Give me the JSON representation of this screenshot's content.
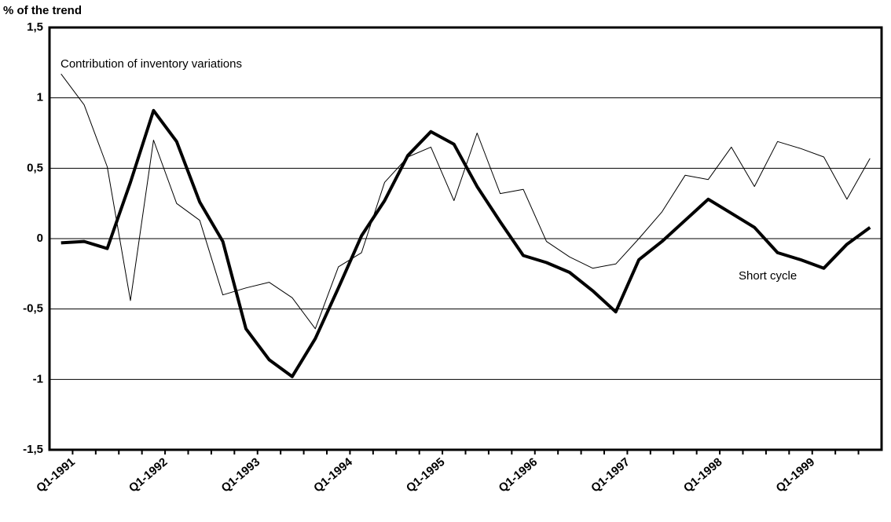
{
  "chart_data": {
    "type": "line",
    "y_label": "% of the trend",
    "annotations": [
      "Contribution of inventory variations",
      "Short cycle"
    ],
    "categories": [
      "Q1-1991",
      null,
      null,
      null,
      "Q1-1992",
      null,
      null,
      null,
      "Q1-1993",
      null,
      null,
      null,
      "Q1-1994",
      null,
      null,
      null,
      "Q1-1995",
      null,
      null,
      null,
      "Q1-1996",
      null,
      null,
      null,
      "Q1-1997",
      null,
      null,
      null,
      "Q1-1998",
      null,
      null,
      null,
      "Q1-1999",
      null,
      null,
      null
    ],
    "series": [
      {
        "name": "Short cycle",
        "color": "#000000",
        "width": 4,
        "values": [
          -0.03,
          -0.02,
          -0.07,
          0.4,
          0.91,
          0.69,
          0.26,
          -0.02,
          -0.64,
          -0.86,
          -0.98,
          -0.71,
          -0.35,
          0.02,
          0.27,
          0.59,
          0.76,
          0.67,
          0.37,
          0.12,
          -0.12,
          -0.17,
          -0.24,
          -0.37,
          -0.52,
          -0.15,
          -0.02,
          0.13,
          0.28,
          0.18,
          0.08,
          -0.1,
          -0.15,
          -0.21,
          -0.04,
          0.08
        ]
      },
      {
        "name": "Contribution of inventory variations",
        "color": "#000000",
        "width": 1,
        "values": [
          1.17,
          0.95,
          0.51,
          -0.44,
          0.7,
          0.25,
          0.13,
          -0.4,
          -0.35,
          -0.31,
          -0.42,
          -0.64,
          -0.2,
          -0.1,
          0.4,
          0.58,
          0.65,
          0.27,
          0.75,
          0.32,
          0.35,
          -0.02,
          -0.13,
          -0.21,
          -0.18,
          0.0,
          0.19,
          0.45,
          0.42,
          0.65,
          0.37,
          0.69,
          0.64,
          0.58,
          0.28,
          0.57
        ]
      }
    ],
    "ylim": [
      -1.5,
      1.5
    ],
    "yticks": [
      {
        "value": -1.5,
        "label": "-1,5"
      },
      -1,
      {
        "value": -0.5,
        "label": "-0,5"
      },
      0,
      {
        "value": 0.5,
        "label": "0,5"
      },
      1,
      {
        "value": 1.5,
        "label": "1,5"
      }
    ],
    "grid": true
  }
}
